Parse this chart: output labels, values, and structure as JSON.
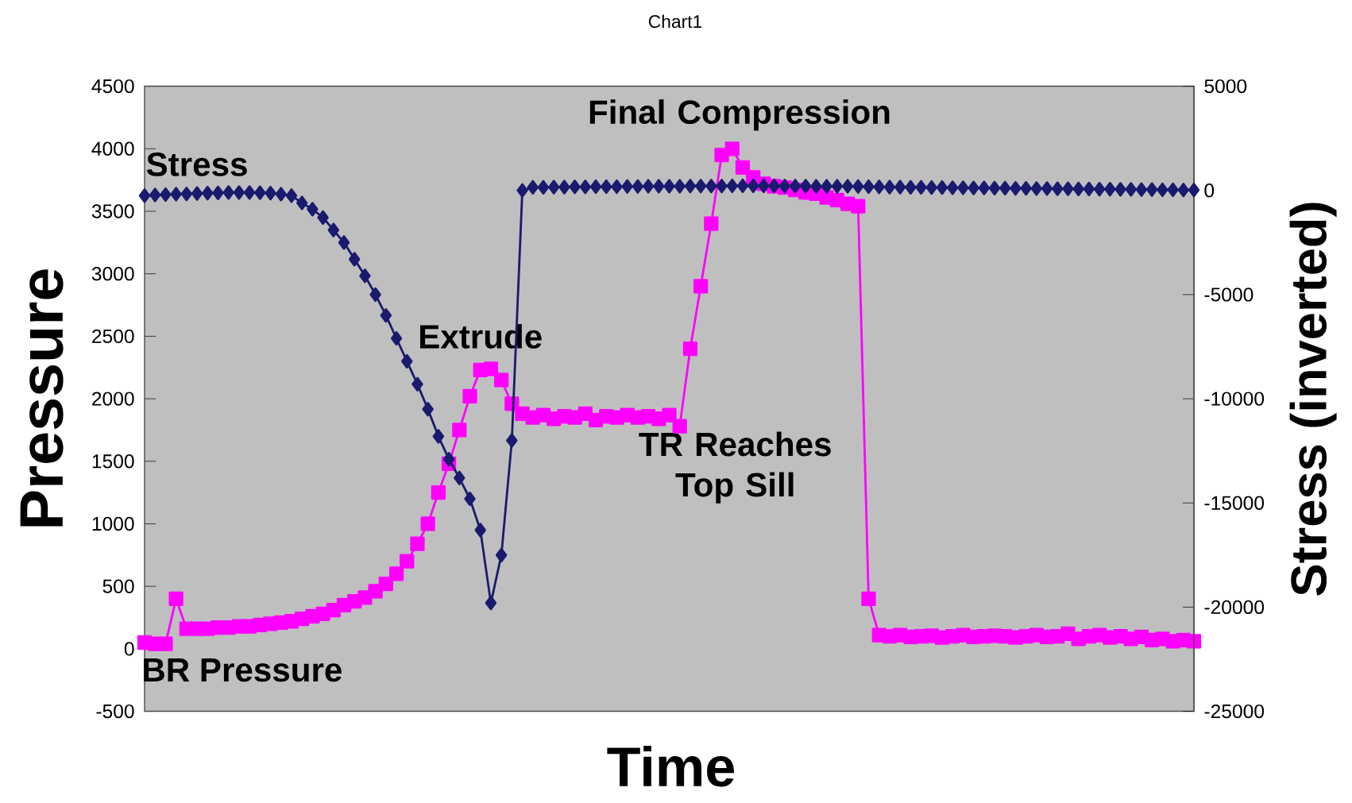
{
  "chart_data": {
    "type": "line",
    "title": "Chart1",
    "xlabel": "Time",
    "ylabel": "Pressure",
    "y2label": "Stress (inverted)",
    "categories": [
      null,
      null,
      null,
      null,
      null,
      null,
      null,
      null,
      null,
      null,
      null,
      null,
      null,
      null,
      null,
      null,
      null,
      null,
      null,
      null,
      null,
      null,
      null,
      null,
      null,
      null,
      null,
      null,
      null,
      null,
      null,
      null,
      null,
      null,
      null,
      null,
      null,
      null,
      null,
      null,
      null,
      null,
      null,
      null,
      null,
      null,
      null,
      null,
      null,
      null,
      null,
      null,
      null,
      null,
      null,
      null,
      null,
      null,
      null,
      null,
      null,
      null,
      null,
      null,
      null,
      null,
      null,
      null,
      null,
      null,
      null,
      null,
      null,
      null,
      null,
      null,
      null,
      null,
      null,
      null,
      null,
      null,
      null,
      null,
      null,
      null,
      null,
      null,
      null,
      null,
      null,
      null,
      null,
      null,
      null,
      null,
      null,
      null,
      null,
      null,
      null
    ],
    "series": [
      {
        "name": "Stress",
        "color": "#1a1a6e",
        "axis": "y2",
        "marker": "diamond",
        "values": [
          -250,
          -220,
          -200,
          -180,
          -170,
          -150,
          -130,
          -120,
          -100,
          -100,
          -100,
          -110,
          -130,
          -180,
          -250,
          -600,
          -900,
          -1300,
          -1900,
          -2500,
          -3300,
          -4100,
          -5000,
          -6000,
          -7100,
          -8200,
          -9300,
          -10500,
          -11800,
          -12900,
          -13800,
          -14800,
          -16300,
          -19800,
          -17500,
          -12000,
          0,
          150,
          150,
          160,
          160,
          170,
          170,
          180,
          180,
          180,
          190,
          190,
          200,
          200,
          200,
          200,
          210,
          210,
          210,
          210,
          220,
          220,
          220,
          220,
          220,
          210,
          210,
          210,
          200,
          200,
          200,
          200,
          190,
          180,
          170,
          160,
          160,
          150,
          150,
          140,
          140,
          130,
          130,
          120,
          120,
          110,
          110,
          100,
          100,
          90,
          90,
          80,
          80,
          70,
          70,
          60,
          60,
          50,
          50,
          40,
          40,
          30,
          30,
          20,
          20
        ]
      },
      {
        "name": "BR Pressure",
        "color": "#ff00ff",
        "marker": "square",
        "values": [
          50,
          40,
          40,
          400,
          160,
          160,
          160,
          170,
          170,
          180,
          180,
          190,
          200,
          210,
          220,
          240,
          260,
          280,
          310,
          350,
          380,
          410,
          460,
          520,
          600,
          700,
          840,
          1000,
          1250,
          1480,
          1750,
          2020,
          2230,
          2240,
          2150,
          1960,
          1880,
          1850,
          1870,
          1840,
          1860,
          1850,
          1880,
          1830,
          1860,
          1850,
          1870,
          1850,
          1860,
          1840,
          1870,
          1780,
          2400,
          2900,
          3400,
          3950,
          4000,
          3850,
          3770,
          3720,
          3700,
          3690,
          3670,
          3650,
          3640,
          3610,
          3590,
          3560,
          3540,
          400,
          110,
          100,
          110,
          95,
          100,
          105,
          90,
          100,
          110,
          95,
          100,
          105,
          100,
          90,
          100,
          110,
          95,
          100,
          120,
          80,
          100,
          110,
          90,
          100,
          80,
          95,
          70,
          80,
          60,
          70,
          60
        ]
      }
    ],
    "ylim": [
      -500,
      4500
    ],
    "yticks": [
      -500,
      0,
      500,
      1000,
      1500,
      2000,
      2500,
      3000,
      3500,
      4000,
      4500
    ],
    "y2lim": [
      -25000,
      5000
    ],
    "y2ticks": [
      -25000,
      -20000,
      -15000,
      -10000,
      -5000,
      0,
      5000
    ],
    "annotations": [
      "Extrude",
      "Final Compression",
      "TR Reaches Top Sill"
    ],
    "grid": false,
    "line_style": "solid"
  }
}
